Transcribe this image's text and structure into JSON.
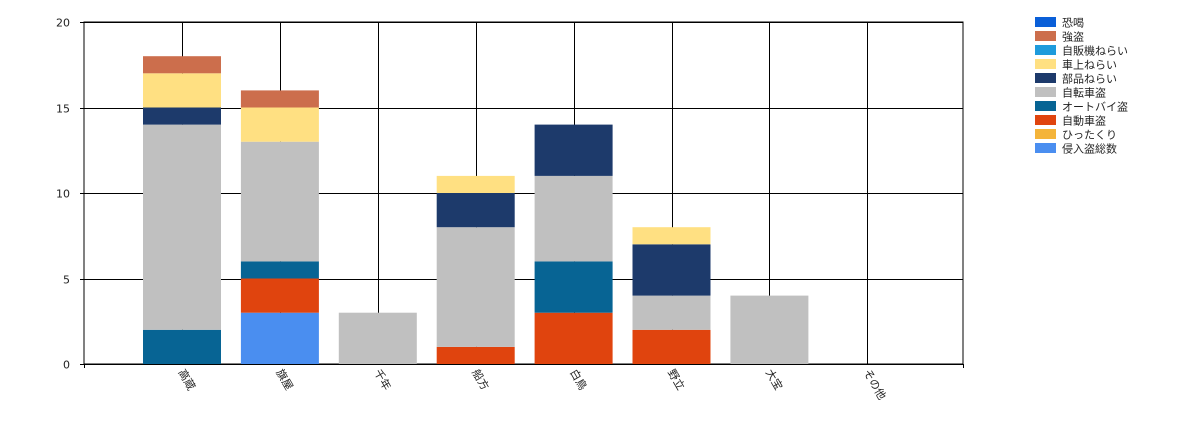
{
  "chart_data": {
    "type": "bar",
    "stacked": true,
    "title": "",
    "xlabel": "",
    "ylabel": "",
    "ylim": [
      0,
      20
    ],
    "yticks": [
      0,
      5,
      10,
      15,
      20
    ],
    "grid": true,
    "legend_position": "top-right",
    "categories": [
      "高蔵",
      "旗屋",
      "千年",
      "船方",
      "白鳥",
      "野立",
      "大宝",
      "その他"
    ],
    "series": [
      {
        "name": "侵入盗総数",
        "color": "#4a8ef0",
        "values": [
          0,
          3,
          0,
          0,
          0,
          0,
          0,
          0
        ]
      },
      {
        "name": "ひったくり",
        "color": "#f4b43a",
        "values": [
          0,
          0,
          0,
          0,
          0,
          0,
          0,
          0
        ]
      },
      {
        "name": "自動車盗",
        "color": "#e0440e",
        "values": [
          0,
          2,
          0,
          1,
          3,
          2,
          0,
          0
        ]
      },
      {
        "name": "オートバイ盗",
        "color": "#076494",
        "values": [
          2,
          1,
          0,
          0,
          3,
          0,
          0,
          0
        ]
      },
      {
        "name": "自転車盗",
        "color": "#c0c0c0",
        "values": [
          12,
          7,
          3,
          7,
          5,
          2,
          4,
          0
        ]
      },
      {
        "name": "部品ねらい",
        "color": "#1d3a6b",
        "values": [
          1,
          0,
          0,
          2,
          3,
          3,
          0,
          0
        ]
      },
      {
        "name": "車上ねらい",
        "color": "#ffe082",
        "values": [
          2,
          2,
          0,
          1,
          0,
          1,
          0,
          0
        ]
      },
      {
        "name": "自販機ねらい",
        "color": "#1e9bdc",
        "values": [
          0,
          0,
          0,
          0,
          0,
          0,
          0,
          0
        ]
      },
      {
        "name": "強盗",
        "color": "#cc6e4c",
        "values": [
          1,
          1,
          0,
          0,
          0,
          0,
          0,
          0
        ]
      },
      {
        "name": "恐喝",
        "color": "#0a5fd8",
        "values": [
          0,
          0,
          0,
          0,
          0,
          0,
          0,
          0
        ]
      }
    ],
    "legend_order": [
      "恐喝",
      "強盗",
      "自販機ねらい",
      "車上ねらい",
      "部品ねらい",
      "自転車盗",
      "オートバイ盗",
      "自動車盗",
      "ひったくり",
      "侵入盗総数"
    ]
  }
}
